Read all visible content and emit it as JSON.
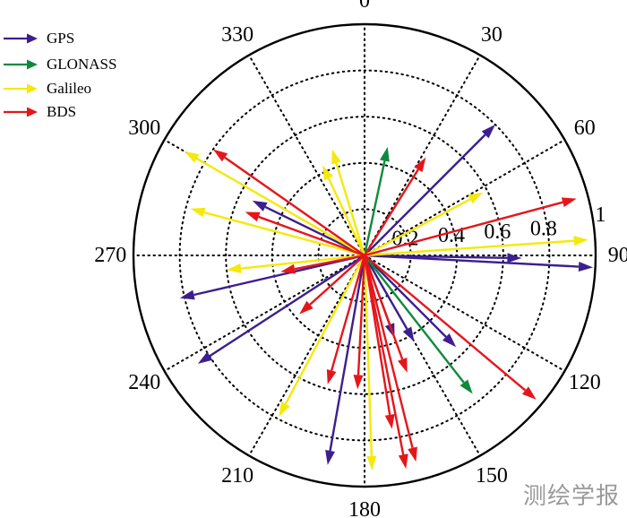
{
  "chart_data": {
    "type": "polar-vector",
    "radial_axis": {
      "range": [
        0,
        1
      ],
      "ticks": [
        0.2,
        0.4,
        0.6,
        0.8,
        1
      ],
      "tick_labels": [
        "0.2",
        "0.4",
        "0.6",
        "0.8",
        "1"
      ]
    },
    "angular_axis": {
      "direction": "clockwise",
      "zero": "top",
      "ticks": [
        0,
        30,
        60,
        90,
        120,
        150,
        180,
        210,
        240,
        270,
        300,
        330
      ],
      "tick_labels": [
        "0",
        "30",
        "60",
        "90",
        "120",
        "150",
        "180",
        "210",
        "240",
        "270",
        "300",
        "330"
      ]
    },
    "grid": "dotted",
    "legend": "top-left",
    "series": [
      {
        "name": "GPS",
        "color": "#3b1f8f",
        "vectors": [
          {
            "azimuth": 91,
            "magnitude": 0.68
          },
          {
            "azimuth": 93,
            "magnitude": 0.99
          },
          {
            "azimuth": 45,
            "magnitude": 0.8
          },
          {
            "azimuth": 296,
            "magnitude": 0.54
          },
          {
            "azimuth": 257,
            "magnitude": 0.82
          },
          {
            "azimuth": 237,
            "magnitude": 0.86
          },
          {
            "azimuth": 190,
            "magnitude": 0.92
          },
          {
            "azimuth": 160,
            "magnitude": 0.38
          },
          {
            "azimuth": 150,
            "magnitude": 0.43
          },
          {
            "azimuth": 135,
            "magnitude": 0.56
          }
        ]
      },
      {
        "name": "GLONASS",
        "color": "#0e8a3c",
        "vectors": [
          {
            "azimuth": 12,
            "magnitude": 0.48
          },
          {
            "azimuth": 142,
            "magnitude": 0.76
          }
        ]
      },
      {
        "name": "Galileo",
        "color": "#f5e90a",
        "vectors": [
          {
            "azimuth": 86,
            "magnitude": 0.97
          },
          {
            "azimuth": 62,
            "magnitude": 0.58
          },
          {
            "azimuth": 300,
            "magnitude": 0.9
          },
          {
            "azimuth": 285,
            "magnitude": 0.78
          },
          {
            "azimuth": 335,
            "magnitude": 0.43
          },
          {
            "azimuth": 343,
            "magnitude": 0.48
          },
          {
            "azimuth": 264,
            "magnitude": 0.6
          },
          {
            "azimuth": 178,
            "magnitude": 0.93
          },
          {
            "azimuth": 208,
            "magnitude": 0.79
          }
        ]
      },
      {
        "name": "BDS",
        "color": "#e5161b",
        "vectors": [
          {
            "azimuth": 75,
            "magnitude": 0.95
          },
          {
            "azimuth": 32,
            "magnitude": 0.5
          },
          {
            "azimuth": 305,
            "magnitude": 0.8
          },
          {
            "azimuth": 290,
            "magnitude": 0.55
          },
          {
            "azimuth": 259,
            "magnitude": 0.37
          },
          {
            "azimuth": 228,
            "magnitude": 0.38
          },
          {
            "azimuth": 196,
            "magnitude": 0.58
          },
          {
            "azimuth": 183,
            "magnitude": 0.58
          },
          {
            "azimuth": 169,
            "magnitude": 0.94
          },
          {
            "azimuth": 166,
            "magnitude": 0.92
          },
          {
            "azimuth": 171,
            "magnitude": 0.76
          },
          {
            "azimuth": 160,
            "magnitude": 0.54
          },
          {
            "azimuth": 130,
            "magnitude": 0.97
          }
        ]
      }
    ]
  },
  "legend": {
    "items": [
      {
        "label": "GPS",
        "color": "#3b1f8f"
      },
      {
        "label": "GLONASS",
        "color": "#0e8a3c"
      },
      {
        "label": "Galileo",
        "color": "#f5e90a"
      },
      {
        "label": "BDS",
        "color": "#e5161b"
      }
    ]
  },
  "watermark": "测绘学报"
}
